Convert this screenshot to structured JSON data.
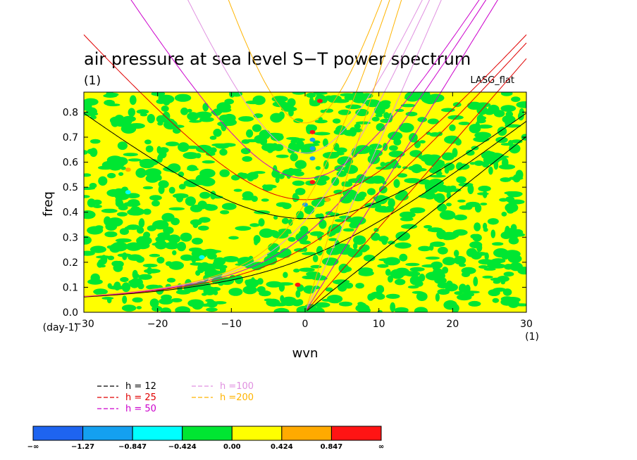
{
  "chart_data": {
    "type": "heatmap",
    "title": "air pressure at sea level S−T power spectrum",
    "subtitle_left": "(1)",
    "subtitle_right": "LASG_flat",
    "xlabel": "wvn",
    "ylabel": "freq",
    "x_unit_label": "(1)",
    "y_unit_label": "(day-1)",
    "xlim": [
      -30,
      30
    ],
    "ylim": [
      0,
      0.88
    ],
    "x_ticks": [
      -30,
      -20,
      -10,
      0,
      10,
      20,
      30
    ],
    "y_ticks": [
      0.0,
      0.1,
      0.2,
      0.3,
      0.4,
      0.5,
      0.6,
      0.7,
      0.8
    ],
    "x_tick_labels": [
      "−30",
      "−20",
      "−10",
      "0",
      "10",
      "20",
      "30"
    ],
    "y_tick_labels": [
      "0.0",
      "0.1",
      "0.2",
      "0.3",
      "0.4",
      "0.5",
      "0.6",
      "0.7",
      "0.8"
    ],
    "colorbar": {
      "labels": [
        "−∞",
        "−1.27",
        "−0.847",
        "−0.424",
        "0.00",
        "0.424",
        "0.847",
        "∞"
      ],
      "colors": [
        "#1e64f0",
        "#14a0f0",
        "#00ffff",
        "#00e632",
        "#ffff00",
        "#ffaa00",
        "#ff1414"
      ]
    },
    "field": {
      "dominant_levels": [
        "-0.424 to 0.00",
        "0.00 to 0.424"
      ],
      "sparse_features": [
        {
          "x": 2,
          "y": 0.845,
          "level": "0.847 to inf"
        },
        {
          "x": 1,
          "y": 0.72,
          "level": "0.847 to inf"
        },
        {
          "x": 1,
          "y": 0.69,
          "level": "-1.27 to -0.847"
        },
        {
          "x": 1,
          "y": 0.655,
          "level": "-1.27 to -0.847"
        },
        {
          "x": 1,
          "y": 0.615,
          "level": "-1.27 to -0.847"
        },
        {
          "x": 1,
          "y": 0.52,
          "level": "0.847 to inf"
        },
        {
          "x": 3,
          "y": 0.45,
          "level": "0.424 to 0.847"
        },
        {
          "x": -24,
          "y": 0.48,
          "level": "-0.847 to -0.424"
        },
        {
          "x": -14,
          "y": 0.22,
          "level": "-0.847 to -0.424"
        },
        {
          "x": 0,
          "y": 0.43,
          "level": "-1.27 to -0.847"
        },
        {
          "x": -1,
          "y": 0.11,
          "level": "0.847 to inf"
        },
        {
          "x": -24,
          "y": 0.57,
          "level": "0.424 to 0.847"
        }
      ]
    },
    "dispersion_curves": [
      {
        "name": "h = 12",
        "color": "#000000"
      },
      {
        "name": "h = 25",
        "color": "#e00000"
      },
      {
        "name": "h = 50",
        "color": "#cc00cc"
      },
      {
        "name": "h =100",
        "color": "#e090e0"
      },
      {
        "name": "h =200",
        "color": "#ffb400"
      }
    ],
    "legend_placement": "bottom-left"
  }
}
